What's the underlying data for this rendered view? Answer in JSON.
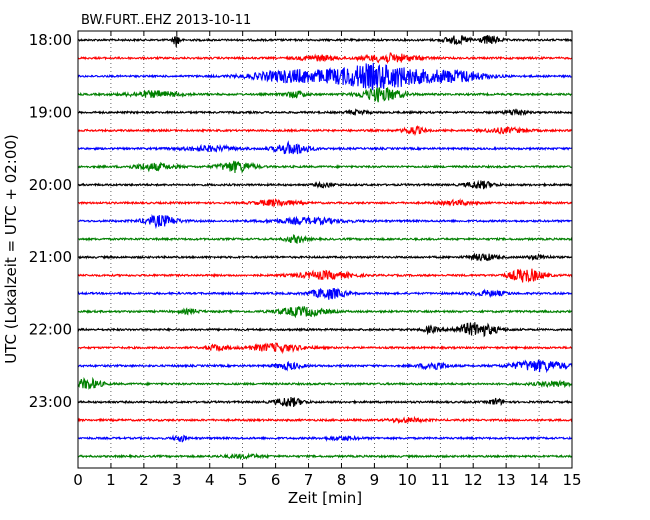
{
  "chart_data": {
    "type": "line",
    "title": "BW.FURT..EHZ 2013-10-11",
    "xlabel": "Zeit  [min]",
    "ylabel": "UTC (Lokalzeit = UTC + 02:00)",
    "xlim": [
      0,
      15
    ],
    "x_ticks": [
      "0",
      "1",
      "2",
      "3",
      "4",
      "5",
      "6",
      "7",
      "8",
      "9",
      "10",
      "11",
      "12",
      "13",
      "14",
      "15"
    ],
    "y_ticks": [
      "18:00",
      "19:00",
      "20:00",
      "21:00",
      "22:00",
      "23:00"
    ],
    "grid": true,
    "series_colors": [
      "#000000",
      "#ff0000",
      "#0000ff",
      "#008000"
    ],
    "traces": [
      {
        "label": "18:00",
        "color": "#000000",
        "events": [
          [
            3.0,
            1.6,
            0.1
          ],
          [
            11.5,
            0.9,
            0.4
          ],
          [
            12.5,
            1.0,
            0.3
          ]
        ]
      },
      {
        "label": "18:15",
        "color": "#ff0000",
        "events": [
          [
            7.3,
            0.6,
            0.6
          ],
          [
            9.5,
            1.0,
            0.8
          ]
        ]
      },
      {
        "label": "18:30",
        "color": "#0000ff",
        "events": [
          [
            9.1,
            3.0,
            1.4
          ],
          [
            6.5,
            1.4,
            1.2
          ],
          [
            11.5,
            1.3,
            0.9
          ]
        ]
      },
      {
        "label": "18:45",
        "color": "#008000",
        "events": [
          [
            6.6,
            0.8,
            0.3
          ],
          [
            9.2,
            1.7,
            0.6
          ],
          [
            2.3,
            0.7,
            0.8
          ]
        ]
      },
      {
        "label": "19:00",
        "color": "#000000",
        "events": [
          [
            13.3,
            0.8,
            0.3
          ],
          [
            8.5,
            0.5,
            0.3
          ]
        ]
      },
      {
        "label": "19:15",
        "color": "#ff0000",
        "events": [
          [
            10.2,
            0.9,
            0.3
          ],
          [
            13.0,
            0.6,
            0.6
          ]
        ]
      },
      {
        "label": "19:30",
        "color": "#0000ff",
        "events": [
          [
            6.5,
            1.4,
            0.5
          ],
          [
            4.0,
            0.6,
            0.8
          ]
        ]
      },
      {
        "label": "19:45",
        "color": "#008000",
        "events": [
          [
            4.8,
            1.3,
            0.5
          ],
          [
            2.3,
            0.8,
            0.6
          ]
        ]
      },
      {
        "label": "20:00",
        "color": "#000000",
        "events": [
          [
            12.2,
            0.9,
            0.4
          ],
          [
            7.5,
            0.5,
            0.3
          ]
        ]
      },
      {
        "label": "20:15",
        "color": "#ff0000",
        "events": [
          [
            6.0,
            0.7,
            0.6
          ],
          [
            11.5,
            0.5,
            0.5
          ]
        ]
      },
      {
        "label": "20:30",
        "color": "#0000ff",
        "events": [
          [
            2.5,
            1.3,
            0.5
          ],
          [
            7.0,
            0.7,
            1.0
          ]
        ]
      },
      {
        "label": "20:45",
        "color": "#008000",
        "events": [
          [
            6.6,
            0.8,
            0.3
          ]
        ]
      },
      {
        "label": "21:00",
        "color": "#000000",
        "events": [
          [
            12.3,
            0.8,
            0.4
          ],
          [
            14.0,
            0.5,
            0.3
          ]
        ]
      },
      {
        "label": "21:15",
        "color": "#ff0000",
        "events": [
          [
            13.6,
            1.6,
            0.5
          ],
          [
            7.5,
            0.9,
            0.8
          ]
        ]
      },
      {
        "label": "21:30",
        "color": "#0000ff",
        "events": [
          [
            7.6,
            1.3,
            0.5
          ],
          [
            12.5,
            0.6,
            0.5
          ]
        ]
      },
      {
        "label": "21:45",
        "color": "#008000",
        "events": [
          [
            6.8,
            1.1,
            0.7
          ],
          [
            3.4,
            0.5,
            0.3
          ]
        ]
      },
      {
        "label": "22:00",
        "color": "#000000",
        "events": [
          [
            12.1,
            1.6,
            0.6
          ],
          [
            10.7,
            0.8,
            0.2
          ]
        ]
      },
      {
        "label": "22:15",
        "color": "#ff0000",
        "events": [
          [
            6.0,
            0.9,
            0.8
          ],
          [
            4.2,
            0.7,
            0.3
          ]
        ]
      },
      {
        "label": "22:30",
        "color": "#0000ff",
        "events": [
          [
            14.0,
            1.3,
            0.8
          ],
          [
            10.8,
            0.9,
            0.4
          ],
          [
            6.4,
            0.8,
            0.4
          ]
        ]
      },
      {
        "label": "22:45",
        "color": "#008000",
        "events": [
          [
            0.3,
            1.2,
            0.4
          ],
          [
            14.5,
            0.6,
            0.6
          ]
        ]
      },
      {
        "label": "23:00",
        "color": "#000000",
        "events": [
          [
            6.4,
            1.1,
            0.4
          ],
          [
            12.7,
            0.8,
            0.2
          ]
        ]
      },
      {
        "label": "23:15",
        "color": "#ff0000",
        "events": [
          [
            10.0,
            0.5,
            0.5
          ]
        ]
      },
      {
        "label": "23:30",
        "color": "#0000ff",
        "events": [
          [
            3.1,
            0.8,
            0.2
          ],
          [
            8.0,
            0.4,
            0.5
          ]
        ]
      },
      {
        "label": "23:45",
        "color": "#008000",
        "events": [
          [
            5.0,
            0.4,
            0.6
          ]
        ]
      }
    ]
  }
}
